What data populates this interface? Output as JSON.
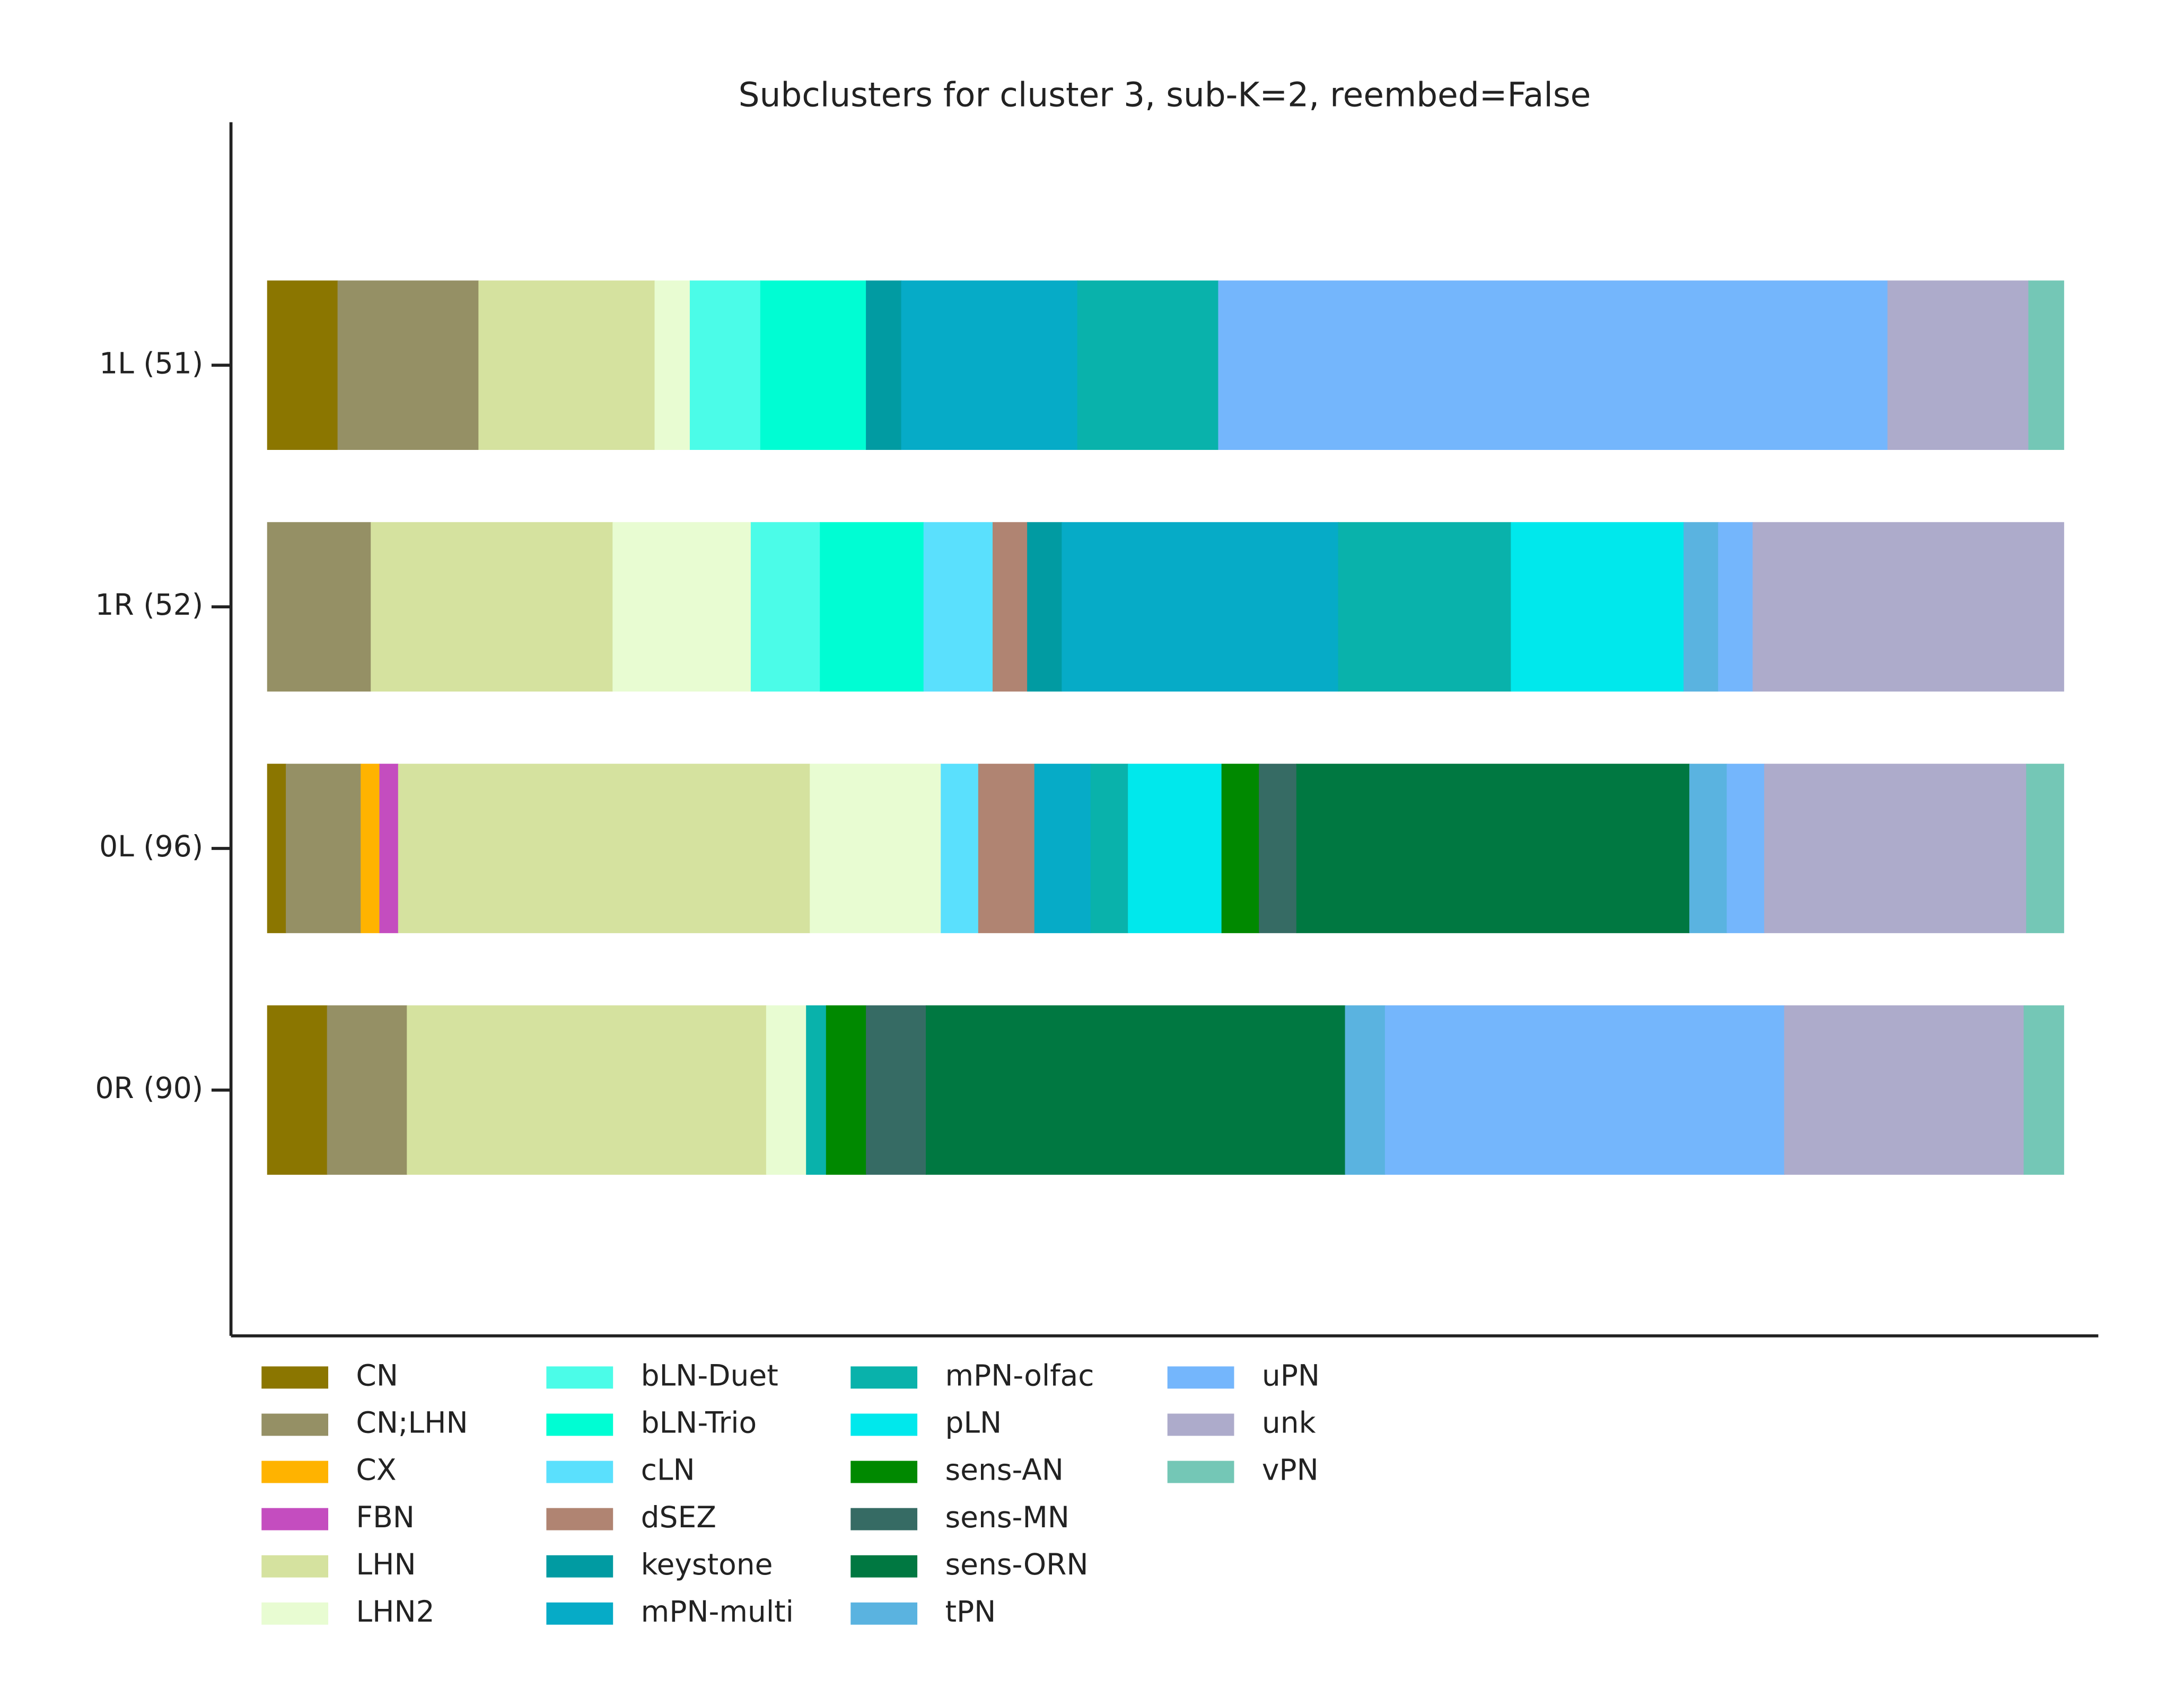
{
  "chart_data": {
    "type": "stacked-barh",
    "title": "Subclusters for cluster 3, sub-K=2, reembed=False",
    "categories": [
      "1L (51)",
      "1R (52)",
      "0L (96)",
      "0R (90)"
    ],
    "series": [
      {
        "name": "CN",
        "color": "#8b7600",
        "values": [
          2,
          null,
          1,
          3
        ]
      },
      {
        "name": "CN;LHN",
        "color": "#959065",
        "values": [
          4,
          3,
          4,
          4
        ]
      },
      {
        "name": "CX",
        "color": "#ffb300",
        "values": [
          null,
          null,
          1,
          null
        ]
      },
      {
        "name": "FBN",
        "color": "#c44dbf",
        "values": [
          null,
          null,
          1,
          null
        ]
      },
      {
        "name": "LHN",
        "color": "#d5e29f",
        "values": [
          5,
          7,
          22,
          18
        ]
      },
      {
        "name": "LHN2",
        "color": "#e8fcd2",
        "values": [
          1,
          4,
          7,
          2
        ]
      },
      {
        "name": "bLN-Duet",
        "color": "#4bfce8",
        "values": [
          2,
          2,
          null,
          null
        ]
      },
      {
        "name": "bLN-Trio",
        "color": "#00fdd3",
        "values": [
          3,
          3,
          null,
          null
        ]
      },
      {
        "name": "cLN",
        "color": "#5ae0fd",
        "values": [
          null,
          2,
          2,
          null
        ]
      },
      {
        "name": "dSEZ",
        "color": "#b08472",
        "values": [
          null,
          1,
          3,
          null
        ]
      },
      {
        "name": "keystone",
        "color": "#019ba2",
        "values": [
          1,
          1,
          null,
          null
        ]
      },
      {
        "name": "mPN-multi",
        "color": "#06abc7",
        "values": [
          5,
          8,
          3,
          null
        ]
      },
      {
        "name": "mPN-olfac",
        "color": "#09b2ab",
        "values": [
          4,
          5,
          2,
          1
        ]
      },
      {
        "name": "pLN",
        "color": "#00e8ec",
        "values": [
          null,
          5,
          5,
          null
        ]
      },
      {
        "name": "sens-AN",
        "color": "#008900",
        "values": [
          null,
          null,
          2,
          2
        ]
      },
      {
        "name": "sens-MN",
        "color": "#366b64",
        "values": [
          null,
          null,
          2,
          3
        ]
      },
      {
        "name": "sens-ORN",
        "color": "#007841",
        "values": [
          null,
          null,
          21,
          21
        ]
      },
      {
        "name": "tPN",
        "color": "#5ab3e0",
        "values": [
          null,
          1,
          2,
          2
        ]
      },
      {
        "name": "uPN",
        "color": "#74b6fc",
        "values": [
          19,
          1,
          2,
          20
        ]
      },
      {
        "name": "unk",
        "color": "#adabcb",
        "values": [
          4,
          9,
          14,
          12
        ]
      },
      {
        "name": "vPN",
        "color": "#74c7b6",
        "values": [
          1,
          null,
          2,
          2
        ]
      }
    ]
  }
}
